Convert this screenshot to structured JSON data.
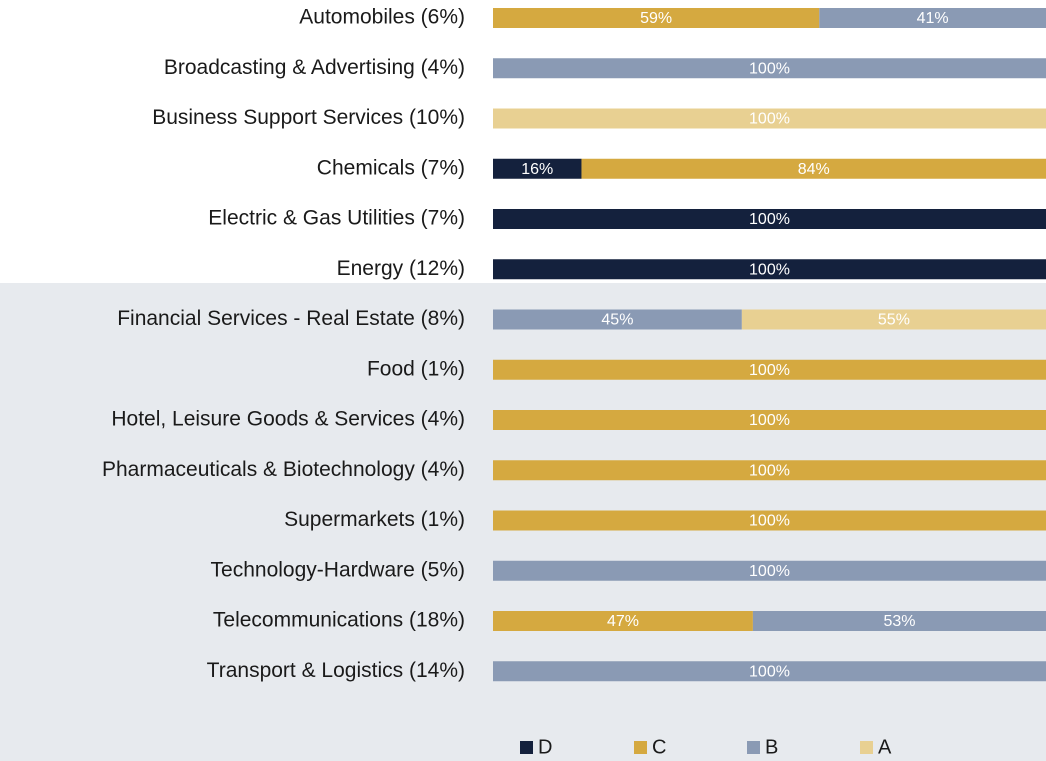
{
  "chart_data": {
    "type": "stacked_bar_horizontal",
    "categories": [
      "Automobiles (6%)",
      "Broadcasting & Advertising (4%)",
      "Business Support Services (10%)",
      "Chemicals (7%)",
      "Electric & Gas Utilities (7%)",
      "Energy (12%)",
      "Financial Services - Real Estate (8%)",
      "Food (1%)",
      "Hotel, Leisure Goods & Services (4%)",
      "Pharmaceuticals & Biotechnology (4%)",
      "Supermarkets (1%)",
      "Technology-Hardware (5%)",
      "Telecommunications (18%)",
      "Transport & Logistics (14%)"
    ],
    "series": [
      {
        "name": "D",
        "color": "#14213d",
        "values": [
          null,
          null,
          null,
          16,
          100,
          100,
          null,
          null,
          null,
          null,
          null,
          null,
          null,
          null
        ],
        "value_labels": [
          null,
          null,
          null,
          "16%",
          "100%",
          "100%",
          null,
          null,
          null,
          null,
          null,
          null,
          null,
          null
        ]
      },
      {
        "name": "C",
        "color": "#d5a940",
        "values": [
          59,
          null,
          null,
          84,
          null,
          null,
          null,
          100,
          100,
          100,
          100,
          null,
          47,
          null
        ],
        "value_labels": [
          "59%",
          null,
          null,
          "84%",
          null,
          null,
          null,
          "100%",
          "100%",
          "100%",
          "100%",
          null,
          "47%",
          null
        ]
      },
      {
        "name": "B",
        "color": "#8a9ab4",
        "values": [
          41,
          100,
          null,
          null,
          null,
          null,
          45,
          null,
          null,
          null,
          null,
          100,
          53,
          100
        ],
        "value_labels": [
          "41%",
          "100%",
          null,
          null,
          null,
          null,
          "45%",
          null,
          null,
          null,
          null,
          "100%",
          "53%",
          "100%"
        ]
      },
      {
        "name": "A",
        "color": "#e8d092",
        "values": [
          null,
          null,
          100,
          null,
          null,
          null,
          55,
          null,
          null,
          null,
          null,
          null,
          null,
          null
        ],
        "value_labels": [
          null,
          null,
          "100%",
          null,
          null,
          null,
          "55%",
          null,
          null,
          null,
          null,
          null,
          null,
          null
        ]
      }
    ],
    "xlim": [
      0,
      100
    ],
    "legend": "bottom"
  }
}
